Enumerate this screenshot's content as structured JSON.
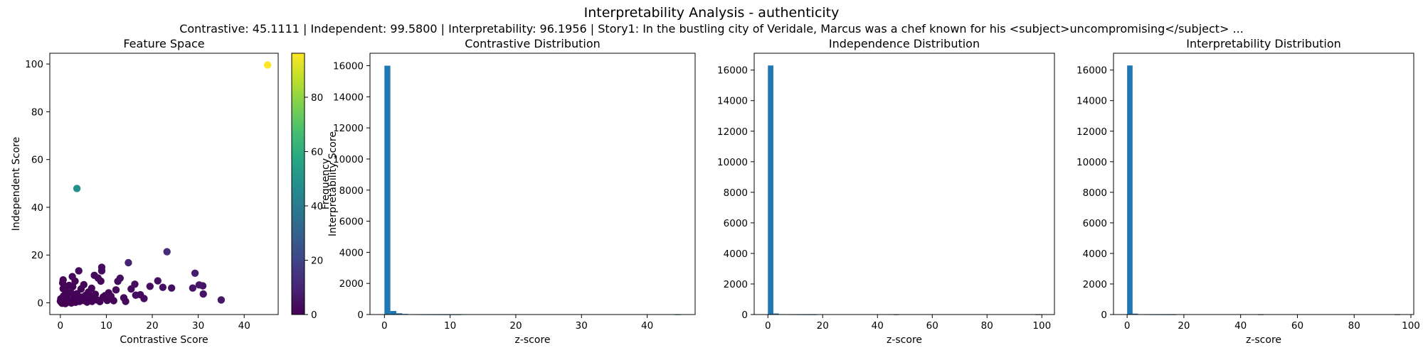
{
  "figure": {
    "title": "Interpretability Analysis - authenticity",
    "subtitle": "Contrastive: 45.1111 | Independent: 99.5800 | Interpretability: 96.1956 | Story1: In the bustling city of Veridale, Marcus was a chef known for his <subject>uncompromising</subject> ..."
  },
  "chart_data": [
    {
      "type": "scatter",
      "title": "Feature Space",
      "xlabel": "Contrastive Score",
      "ylabel": "Independent Score",
      "xlim": [
        -2.3,
        47.4
      ],
      "ylim": [
        -4.9,
        104.5
      ],
      "xticks": [
        0,
        10,
        20,
        30,
        40
      ],
      "yticks": [
        0,
        20,
        40,
        60,
        80,
        100
      ],
      "colorbar": {
        "label": "Interpretability Score",
        "colormap": "viridis",
        "range": [
          0,
          96.2
        ],
        "ticks": [
          0,
          20,
          40,
          60,
          80
        ]
      },
      "points": [
        [
          45.1,
          99.6,
          96.2
        ],
        [
          3.6,
          47.9,
          48.0
        ],
        [
          23.2,
          21.4,
          12.0
        ],
        [
          14.8,
          16.8,
          9.0
        ],
        [
          35.0,
          1.2,
          6.0
        ],
        [
          29.3,
          12.4,
          8.0
        ],
        [
          31.1,
          3.7,
          5.0
        ],
        [
          30.2,
          7.5,
          6.0
        ],
        [
          28.8,
          6.2,
          5.5
        ],
        [
          31.0,
          7.1,
          5.0
        ],
        [
          24.2,
          6.2,
          4.0
        ],
        [
          22.3,
          6.5,
          4.0
        ],
        [
          21.2,
          9.2,
          4.5
        ],
        [
          19.5,
          6.9,
          3.5
        ],
        [
          18.2,
          1.8,
          3.0
        ],
        [
          17.4,
          3.4,
          3.0
        ],
        [
          16.4,
          3.2,
          3.0
        ],
        [
          15.4,
          5.8,
          3.0
        ],
        [
          16.2,
          7.8,
          3.5
        ],
        [
          13.0,
          10.3,
          3.5
        ],
        [
          12.5,
          9.0,
          3.0
        ],
        [
          12.1,
          5.4,
          2.5
        ],
        [
          11.0,
          2.8,
          2.0
        ],
        [
          9.0,
          14.9,
          3.0
        ],
        [
          9.0,
          13.4,
          3.0
        ],
        [
          7.4,
          11.5,
          2.5
        ],
        [
          8.8,
          9.1,
          2.0
        ],
        [
          8.2,
          10.4,
          2.0
        ],
        [
          4.0,
          13.4,
          2.5
        ],
        [
          2.6,
          11.0,
          2.0
        ],
        [
          0.6,
          9.6,
          1.5
        ],
        [
          0.5,
          8.3,
          1.0
        ],
        [
          1.2,
          5.2,
          1.0
        ],
        [
          2.3,
          4.3,
          1.0
        ],
        [
          2.7,
          6.8,
          1.0
        ],
        [
          4.5,
          5.8,
          1.0
        ],
        [
          5.5,
          3.2,
          1.0
        ],
        [
          6.1,
          4.5,
          1.0
        ],
        [
          7.1,
          2.6,
          1.0
        ],
        [
          3.0,
          2.8,
          0.5
        ],
        [
          1.0,
          2.0,
          0.5
        ],
        [
          1.8,
          1.2,
          0.5
        ],
        [
          4.0,
          1.6,
          0.5
        ],
        [
          5.0,
          1.0,
          0.5
        ],
        [
          6.4,
          1.4,
          0.5
        ],
        [
          8.0,
          1.2,
          0.5
        ],
        [
          9.3,
          2.4,
          1.0
        ],
        [
          10.2,
          1.0,
          1.0
        ],
        [
          0.2,
          0.2,
          0.0
        ],
        [
          0.5,
          0.4,
          0.0
        ],
        [
          0.9,
          0.1,
          0.0
        ],
        [
          1.4,
          0.6,
          0.0
        ],
        [
          2.0,
          0.3,
          0.0
        ],
        [
          2.7,
          0.8,
          0.0
        ],
        [
          3.3,
          0.2,
          0.0
        ],
        [
          0.3,
          1.1,
          0.0
        ],
        [
          0.1,
          1.7,
          0.0
        ],
        [
          0.7,
          2.9,
          0.5
        ],
        [
          1.5,
          3.5,
          0.5
        ],
        [
          3.6,
          3.8,
          0.5
        ],
        [
          4.6,
          2.4,
          0.5
        ],
        [
          5.8,
          0.3,
          0.5
        ],
        [
          6.9,
          0.6,
          0.5
        ],
        [
          7.6,
          3.6,
          1.0
        ],
        [
          8.6,
          0.5,
          0.5
        ],
        [
          11.6,
          0.9,
          1.0
        ],
        [
          0.4,
          -0.2,
          0.0
        ],
        [
          1.1,
          -0.3,
          0.0
        ],
        [
          2.4,
          -0.1,
          0.0
        ],
        [
          0.0,
          0.7,
          0.0
        ],
        [
          0.6,
          5.9,
          0.5
        ],
        [
          1.9,
          7.3,
          1.0
        ],
        [
          3.2,
          9.1,
          1.5
        ],
        [
          5.1,
          7.6,
          1.5
        ],
        [
          6.8,
          6.1,
          1.5
        ],
        [
          10.5,
          4.2,
          1.5
        ],
        [
          13.8,
          2.1,
          2.0
        ],
        [
          14.2,
          0.6,
          2.0
        ],
        [
          4.2,
          0.6,
          0.0
        ],
        [
          9.7,
          3.0,
          1.0
        ]
      ]
    },
    {
      "type": "bar",
      "title": "Contrastive Distribution",
      "xlabel": "z-score",
      "ylabel": "Frequency",
      "xlim": [
        -2.2,
        47.3
      ],
      "ylim": [
        0,
        16800
      ],
      "xticks": [
        0,
        10,
        20,
        30,
        40
      ],
      "yticks": [
        0,
        2000,
        4000,
        6000,
        8000,
        10000,
        12000,
        14000,
        16000
      ],
      "bins": {
        "start": 0,
        "width": 0.9022
      },
      "values": [
        16000,
        230,
        80,
        40,
        18,
        10,
        6,
        4,
        3,
        2,
        1,
        1,
        1,
        0,
        0,
        0,
        0,
        0,
        0,
        0,
        0,
        0,
        0,
        0,
        0,
        0,
        0,
        0,
        0,
        0,
        0,
        0,
        0,
        0,
        0,
        0,
        0,
        0,
        0,
        0,
        0,
        0,
        0,
        0,
        0,
        0,
        0,
        0,
        0,
        1
      ]
    },
    {
      "type": "bar",
      "title": "Independence Distribution",
      "xlabel": "z-score",
      "ylabel": "",
      "xlim": [
        -5.0,
        104.6
      ],
      "ylim": [
        0,
        17100
      ],
      "xticks": [
        0,
        20,
        40,
        60,
        80,
        100
      ],
      "yticks": [
        0,
        2000,
        4000,
        6000,
        8000,
        10000,
        12000,
        14000,
        16000
      ],
      "bins": {
        "start": 0,
        "width": 1.9916
      },
      "values": [
        16300,
        70,
        25,
        12,
        8,
        5,
        3,
        2,
        1,
        0,
        0,
        0,
        0,
        0,
        0,
        0,
        0,
        0,
        0,
        0,
        0,
        0,
        0,
        1,
        0,
        0,
        0,
        0,
        0,
        0,
        0,
        0,
        0,
        0,
        0,
        0,
        0,
        0,
        0,
        0,
        0,
        0,
        0,
        0,
        0,
        0,
        0,
        0,
        0,
        1
      ]
    },
    {
      "type": "bar",
      "title": "Interpretability Distribution",
      "xlabel": "z-score",
      "ylabel": "",
      "xlim": [
        -4.8,
        101.0
      ],
      "ylim": [
        0,
        17100
      ],
      "xticks": [
        0,
        20,
        40,
        60,
        80,
        100
      ],
      "yticks": [
        0,
        2000,
        4000,
        6000,
        8000,
        10000,
        12000,
        14000,
        16000
      ],
      "bins": {
        "start": 0,
        "width": 1.9239
      },
      "values": [
        16300,
        60,
        22,
        10,
        6,
        4,
        3,
        2,
        1,
        0,
        0,
        0,
        0,
        0,
        0,
        0,
        0,
        0,
        0,
        0,
        0,
        0,
        0,
        0,
        1,
        0,
        0,
        0,
        0,
        0,
        0,
        0,
        0,
        0,
        0,
        0,
        0,
        0,
        0,
        0,
        0,
        0,
        0,
        0,
        0,
        0,
        0,
        0,
        0,
        1
      ]
    }
  ]
}
